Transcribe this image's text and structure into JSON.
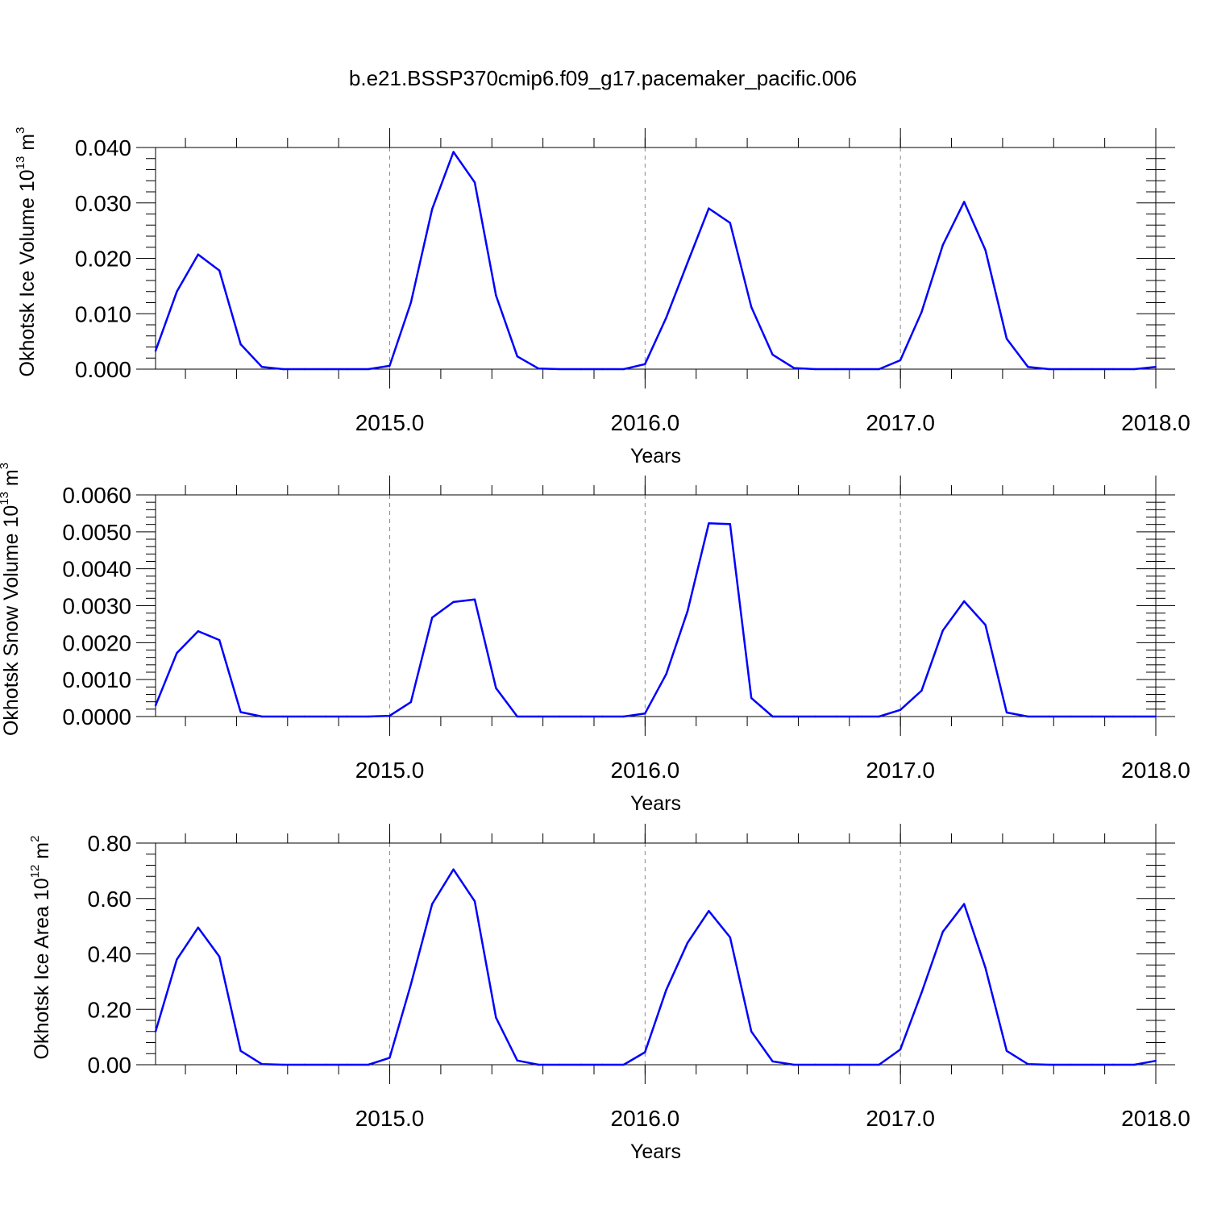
{
  "title": "b.e21.BSSP370cmip6.f09_g17.pacemaker_pacific.006",
  "colors": {
    "series": "#0000ff",
    "axis": "#000000",
    "grid": "#888888"
  },
  "chart_data": [
    {
      "type": "line",
      "ylabel": {
        "text": "Okhotsk Ice Volume 10",
        "exp1": "13",
        "mid": " m",
        "exp2": "3"
      },
      "xlabel": "Years",
      "xlim": [
        2014.083,
        2018.0
      ],
      "ylim": [
        0.0,
        0.04
      ],
      "yticks": [
        "0.000",
        "0.010",
        "0.020",
        "0.030",
        "0.040"
      ],
      "ytick_values": [
        0.0,
        0.01,
        0.02,
        0.03,
        0.04
      ],
      "xticks": [
        "2015.0",
        "2016.0",
        "2017.0",
        "2018.0"
      ],
      "xtick_values": [
        2015.0,
        2016.0,
        2017.0,
        2018.0
      ],
      "grid": "dashed vertical at year marks",
      "x_start": 2014.083,
      "x_step": 0.08333,
      "values": [
        0.0033,
        0.014,
        0.0207,
        0.0178,
        0.0045,
        0.0004,
        0.0,
        0.0,
        0.0,
        0.0,
        0.0,
        0.0006,
        0.012,
        0.0289,
        0.0392,
        0.0337,
        0.0133,
        0.0023,
        0.0001,
        0.0,
        0.0,
        0.0,
        0.0,
        0.0009,
        0.0093,
        0.0192,
        0.029,
        0.0264,
        0.0112,
        0.0026,
        0.0002,
        0.0,
        0.0,
        0.0,
        0.0,
        0.0016,
        0.0103,
        0.0224,
        0.0302,
        0.0215,
        0.0055,
        0.0004,
        0.0,
        0.0,
        0.0,
        0.0,
        0.0,
        0.0004
      ]
    },
    {
      "type": "line",
      "ylabel": {
        "text": "Okhotsk Snow Volume 10",
        "exp1": "13",
        "mid": " m",
        "exp2": "3"
      },
      "xlabel": "Years",
      "xlim": [
        2014.083,
        2018.0
      ],
      "ylim": [
        0.0,
        0.006
      ],
      "yticks": [
        "0.0000",
        "0.0010",
        "0.0020",
        "0.0030",
        "0.0040",
        "0.0050",
        "0.0060"
      ],
      "ytick_values": [
        0.0,
        0.001,
        0.002,
        0.003,
        0.004,
        0.005,
        0.006
      ],
      "xticks": [
        "2015.0",
        "2016.0",
        "2017.0",
        "2018.0"
      ],
      "xtick_values": [
        2015.0,
        2016.0,
        2017.0,
        2018.0
      ],
      "grid": "dashed vertical at year marks",
      "x_start": 2014.083,
      "x_step": 0.08333,
      "values": [
        0.0003,
        0.00172,
        0.00231,
        0.00207,
        0.00012,
        0.0,
        0.0,
        0.0,
        0.0,
        0.0,
        0.0,
        2e-05,
        0.00039,
        0.00268,
        0.0031,
        0.00317,
        0.00077,
        0.0,
        0.0,
        0.0,
        0.0,
        0.0,
        0.0,
        8e-05,
        0.00115,
        0.00285,
        0.00523,
        0.00521,
        0.0005,
        0.0,
        0.0,
        0.0,
        0.0,
        0.0,
        0.0,
        0.00018,
        0.0007,
        0.00233,
        0.00312,
        0.00248,
        0.00011,
        0.0,
        0.0,
        0.0,
        0.0,
        0.0,
        0.0,
        0.0
      ]
    },
    {
      "type": "line",
      "ylabel": {
        "text": "Okhotsk Ice Area 10",
        "exp1": "12",
        "mid": " m",
        "exp2": "2"
      },
      "xlabel": "Years",
      "xlim": [
        2014.083,
        2018.0
      ],
      "ylim": [
        0.0,
        0.8
      ],
      "yticks": [
        "0.00",
        "0.20",
        "0.40",
        "0.60",
        "0.80"
      ],
      "ytick_values": [
        0.0,
        0.2,
        0.4,
        0.6,
        0.8
      ],
      "xticks": [
        "2015.0",
        "2016.0",
        "2017.0",
        "2018.0"
      ],
      "xtick_values": [
        2015.0,
        2016.0,
        2017.0,
        2018.0
      ],
      "grid": "dashed vertical at year marks",
      "x_start": 2014.083,
      "x_step": 0.08333,
      "values": [
        0.12,
        0.38,
        0.495,
        0.39,
        0.05,
        0.002,
        0.0,
        0.0,
        0.0,
        0.0,
        0.0,
        0.025,
        0.29,
        0.58,
        0.705,
        0.59,
        0.17,
        0.015,
        0.0,
        0.0,
        0.0,
        0.0,
        0.0,
        0.045,
        0.27,
        0.44,
        0.555,
        0.46,
        0.12,
        0.012,
        0.0,
        0.0,
        0.0,
        0.0,
        0.0,
        0.055,
        0.26,
        0.48,
        0.58,
        0.35,
        0.05,
        0.002,
        0.0,
        0.0,
        0.0,
        0.0,
        0.0,
        0.014
      ]
    }
  ]
}
